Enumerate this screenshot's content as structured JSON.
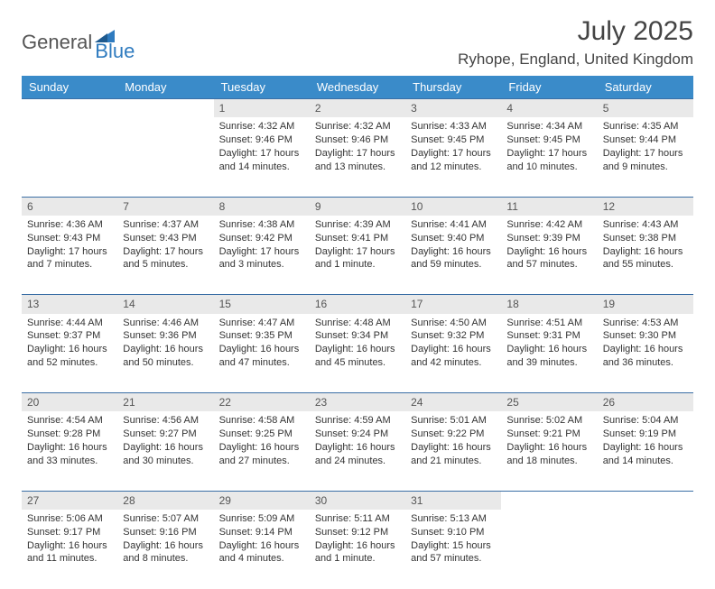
{
  "brand": {
    "part1": "General",
    "part2": "Blue"
  },
  "title": "July 2025",
  "location": "Ryhope, England, United Kingdom",
  "colors": {
    "header_bg": "#3a8bc9",
    "header_text": "#ffffff",
    "daynum_bg": "#e9e9e9",
    "border": "#3a6ea5",
    "brand_blue": "#2f7bbf",
    "body_text": "#333333"
  },
  "day_headers": [
    "Sunday",
    "Monday",
    "Tuesday",
    "Wednesday",
    "Thursday",
    "Friday",
    "Saturday"
  ],
  "weeks": [
    {
      "nums": [
        "",
        "",
        "1",
        "2",
        "3",
        "4",
        "5"
      ],
      "cells": [
        null,
        null,
        {
          "sunrise": "Sunrise: 4:32 AM",
          "sunset": "Sunset: 9:46 PM",
          "day1": "Daylight: 17 hours",
          "day2": "and 14 minutes."
        },
        {
          "sunrise": "Sunrise: 4:32 AM",
          "sunset": "Sunset: 9:46 PM",
          "day1": "Daylight: 17 hours",
          "day2": "and 13 minutes."
        },
        {
          "sunrise": "Sunrise: 4:33 AM",
          "sunset": "Sunset: 9:45 PM",
          "day1": "Daylight: 17 hours",
          "day2": "and 12 minutes."
        },
        {
          "sunrise": "Sunrise: 4:34 AM",
          "sunset": "Sunset: 9:45 PM",
          "day1": "Daylight: 17 hours",
          "day2": "and 10 minutes."
        },
        {
          "sunrise": "Sunrise: 4:35 AM",
          "sunset": "Sunset: 9:44 PM",
          "day1": "Daylight: 17 hours",
          "day2": "and 9 minutes."
        }
      ]
    },
    {
      "nums": [
        "6",
        "7",
        "8",
        "9",
        "10",
        "11",
        "12"
      ],
      "cells": [
        {
          "sunrise": "Sunrise: 4:36 AM",
          "sunset": "Sunset: 9:43 PM",
          "day1": "Daylight: 17 hours",
          "day2": "and 7 minutes."
        },
        {
          "sunrise": "Sunrise: 4:37 AM",
          "sunset": "Sunset: 9:43 PM",
          "day1": "Daylight: 17 hours",
          "day2": "and 5 minutes."
        },
        {
          "sunrise": "Sunrise: 4:38 AM",
          "sunset": "Sunset: 9:42 PM",
          "day1": "Daylight: 17 hours",
          "day2": "and 3 minutes."
        },
        {
          "sunrise": "Sunrise: 4:39 AM",
          "sunset": "Sunset: 9:41 PM",
          "day1": "Daylight: 17 hours",
          "day2": "and 1 minute."
        },
        {
          "sunrise": "Sunrise: 4:41 AM",
          "sunset": "Sunset: 9:40 PM",
          "day1": "Daylight: 16 hours",
          "day2": "and 59 minutes."
        },
        {
          "sunrise": "Sunrise: 4:42 AM",
          "sunset": "Sunset: 9:39 PM",
          "day1": "Daylight: 16 hours",
          "day2": "and 57 minutes."
        },
        {
          "sunrise": "Sunrise: 4:43 AM",
          "sunset": "Sunset: 9:38 PM",
          "day1": "Daylight: 16 hours",
          "day2": "and 55 minutes."
        }
      ]
    },
    {
      "nums": [
        "13",
        "14",
        "15",
        "16",
        "17",
        "18",
        "19"
      ],
      "cells": [
        {
          "sunrise": "Sunrise: 4:44 AM",
          "sunset": "Sunset: 9:37 PM",
          "day1": "Daylight: 16 hours",
          "day2": "and 52 minutes."
        },
        {
          "sunrise": "Sunrise: 4:46 AM",
          "sunset": "Sunset: 9:36 PM",
          "day1": "Daylight: 16 hours",
          "day2": "and 50 minutes."
        },
        {
          "sunrise": "Sunrise: 4:47 AM",
          "sunset": "Sunset: 9:35 PM",
          "day1": "Daylight: 16 hours",
          "day2": "and 47 minutes."
        },
        {
          "sunrise": "Sunrise: 4:48 AM",
          "sunset": "Sunset: 9:34 PM",
          "day1": "Daylight: 16 hours",
          "day2": "and 45 minutes."
        },
        {
          "sunrise": "Sunrise: 4:50 AM",
          "sunset": "Sunset: 9:32 PM",
          "day1": "Daylight: 16 hours",
          "day2": "and 42 minutes."
        },
        {
          "sunrise": "Sunrise: 4:51 AM",
          "sunset": "Sunset: 9:31 PM",
          "day1": "Daylight: 16 hours",
          "day2": "and 39 minutes."
        },
        {
          "sunrise": "Sunrise: 4:53 AM",
          "sunset": "Sunset: 9:30 PM",
          "day1": "Daylight: 16 hours",
          "day2": "and 36 minutes."
        }
      ]
    },
    {
      "nums": [
        "20",
        "21",
        "22",
        "23",
        "24",
        "25",
        "26"
      ],
      "cells": [
        {
          "sunrise": "Sunrise: 4:54 AM",
          "sunset": "Sunset: 9:28 PM",
          "day1": "Daylight: 16 hours",
          "day2": "and 33 minutes."
        },
        {
          "sunrise": "Sunrise: 4:56 AM",
          "sunset": "Sunset: 9:27 PM",
          "day1": "Daylight: 16 hours",
          "day2": "and 30 minutes."
        },
        {
          "sunrise": "Sunrise: 4:58 AM",
          "sunset": "Sunset: 9:25 PM",
          "day1": "Daylight: 16 hours",
          "day2": "and 27 minutes."
        },
        {
          "sunrise": "Sunrise: 4:59 AM",
          "sunset": "Sunset: 9:24 PM",
          "day1": "Daylight: 16 hours",
          "day2": "and 24 minutes."
        },
        {
          "sunrise": "Sunrise: 5:01 AM",
          "sunset": "Sunset: 9:22 PM",
          "day1": "Daylight: 16 hours",
          "day2": "and 21 minutes."
        },
        {
          "sunrise": "Sunrise: 5:02 AM",
          "sunset": "Sunset: 9:21 PM",
          "day1": "Daylight: 16 hours",
          "day2": "and 18 minutes."
        },
        {
          "sunrise": "Sunrise: 5:04 AM",
          "sunset": "Sunset: 9:19 PM",
          "day1": "Daylight: 16 hours",
          "day2": "and 14 minutes."
        }
      ]
    },
    {
      "nums": [
        "27",
        "28",
        "29",
        "30",
        "31",
        "",
        ""
      ],
      "cells": [
        {
          "sunrise": "Sunrise: 5:06 AM",
          "sunset": "Sunset: 9:17 PM",
          "day1": "Daylight: 16 hours",
          "day2": "and 11 minutes."
        },
        {
          "sunrise": "Sunrise: 5:07 AM",
          "sunset": "Sunset: 9:16 PM",
          "day1": "Daylight: 16 hours",
          "day2": "and 8 minutes."
        },
        {
          "sunrise": "Sunrise: 5:09 AM",
          "sunset": "Sunset: 9:14 PM",
          "day1": "Daylight: 16 hours",
          "day2": "and 4 minutes."
        },
        {
          "sunrise": "Sunrise: 5:11 AM",
          "sunset": "Sunset: 9:12 PM",
          "day1": "Daylight: 16 hours",
          "day2": "and 1 minute."
        },
        {
          "sunrise": "Sunrise: 5:13 AM",
          "sunset": "Sunset: 9:10 PM",
          "day1": "Daylight: 15 hours",
          "day2": "and 57 minutes."
        },
        null,
        null
      ]
    }
  ]
}
